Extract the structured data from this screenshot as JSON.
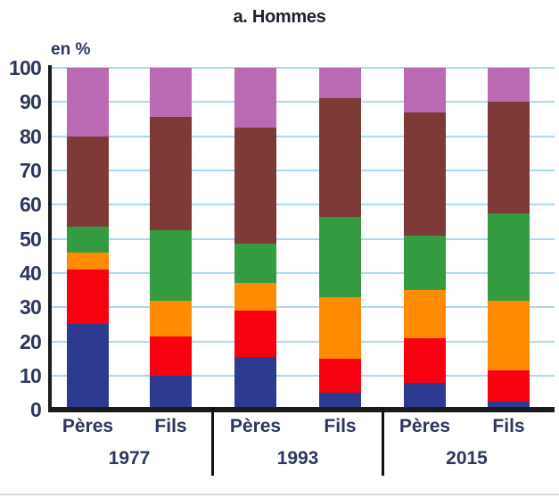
{
  "chart_data": {
    "type": "bar",
    "stacked": true,
    "title": "a. Hommes",
    "ylabel": "en %",
    "ylim": [
      0,
      100
    ],
    "yticks": [
      0,
      10,
      20,
      30,
      40,
      50,
      60,
      70,
      80,
      90,
      100
    ],
    "grid": "horizontal",
    "legend_visible": false,
    "groups": [
      {
        "year": "1977",
        "bars": [
          "Pères",
          "Fils"
        ]
      },
      {
        "year": "1993",
        "bars": [
          "Pères",
          "Fils"
        ]
      },
      {
        "year": "2015",
        "bars": [
          "Pères",
          "Fils"
        ]
      }
    ],
    "categories": [
      "Pères 1977",
      "Fils 1977",
      "Pères 1993",
      "Fils 1993",
      "Pères 2015",
      "Fils 2015"
    ],
    "series": [
      {
        "name": "navy-segment",
        "color": "#2c3a90",
        "values": [
          25,
          10,
          15.5,
          5,
          8,
          2.5
        ]
      },
      {
        "name": "red-segment",
        "color": "#f70010",
        "values": [
          16,
          11.5,
          13.5,
          10,
          13,
          9
        ]
      },
      {
        "name": "orange-segment",
        "color": "#ff8c00",
        "values": [
          5,
          10.5,
          8,
          18,
          14,
          20.5
        ]
      },
      {
        "name": "green-segment",
        "color": "#349b41",
        "values": [
          7.5,
          20.5,
          11.5,
          23.5,
          16,
          25.5
        ]
      },
      {
        "name": "brown-segment",
        "color": "#7e3a36",
        "values": [
          26.5,
          33,
          34,
          34.5,
          36,
          32.5
        ]
      },
      {
        "name": "pink-segment",
        "color": "#ba6ab3",
        "values": [
          20,
          14.5,
          17.5,
          9,
          13,
          10
        ]
      }
    ],
    "colors": {
      "gridline": "#a8daf2",
      "axis": "#1a1a1a",
      "tick_text": "#2c3660",
      "title_text": "#20202e"
    }
  }
}
